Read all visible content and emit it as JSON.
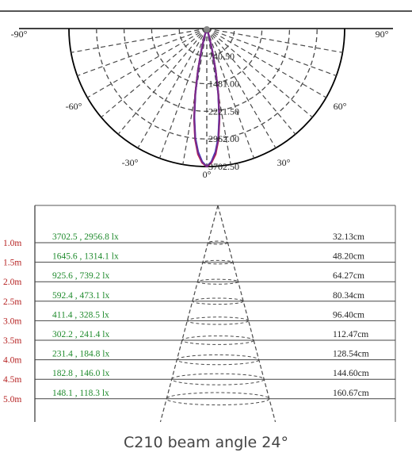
{
  "caption": "C210 beam angle 24°",
  "colors": {
    "dash": "#4a4a4a",
    "curve_c0": "#e8102a",
    "curve_c90": "#1f3fd8",
    "curve_c_mid": "#7a2a8a",
    "illuminance_text": "#1e8a2c",
    "distance_text": "#b52020",
    "diameter_text": "#222222"
  },
  "chart_data": [
    {
      "type": "polar",
      "angle_labels": [
        {
          "value": -90,
          "text": "-90°"
        },
        {
          "value": 90,
          "text": "90°"
        },
        {
          "value": -60,
          "text": "-60°"
        },
        {
          "value": 60,
          "text": "60°"
        },
        {
          "value": -30,
          "text": "-30°"
        },
        {
          "value": 30,
          "text": "30°"
        },
        {
          "value": 0,
          "text": "0°"
        }
      ],
      "radial_labels": [
        "740.50",
        "1481.00",
        "2221.50",
        "2962.00",
        "3702.50"
      ],
      "radial_max": 3702.5,
      "series": [
        {
          "points": [
            [
              0,
              3702.5
            ],
            [
              2,
              3600
            ],
            [
              4,
              3380
            ],
            [
              6,
              3000
            ],
            [
              8,
              2450
            ],
            [
              10,
              1800
            ],
            [
              12,
              1150
            ],
            [
              14,
              620
            ],
            [
              16,
              260
            ],
            [
              18,
              70
            ],
            [
              20,
              10
            ],
            [
              22,
              0
            ]
          ]
        },
        {
          "points": [
            [
              0,
              3702.5
            ],
            [
              2,
              3570
            ],
            [
              4,
              3320
            ],
            [
              6,
              2950
            ],
            [
              8,
              2400
            ],
            [
              10,
              1760
            ],
            [
              12,
              1120
            ],
            [
              14,
              600
            ],
            [
              16,
              250
            ],
            [
              18,
              65
            ],
            [
              20,
              8
            ],
            [
              22,
              0
            ]
          ]
        },
        {
          "points": [
            [
              0,
              3702.5
            ],
            [
              2,
              3590
            ],
            [
              4,
              3350
            ],
            [
              6,
              2980
            ],
            [
              8,
              2430
            ],
            [
              10,
              1780
            ],
            [
              12,
              1140
            ],
            [
              14,
              610
            ],
            [
              16,
              255
            ],
            [
              18,
              68
            ],
            [
              20,
              9
            ],
            [
              22,
              0
            ]
          ]
        }
      ]
    },
    {
      "type": "table",
      "beam_angle_deg": 24,
      "rows": [
        {
          "distance": "1.0m",
          "lux": "3702.5 , 2956.8 lx",
          "diameter": "32.13cm"
        },
        {
          "distance": "1.5m",
          "lux": "1645.6 , 1314.1 lx",
          "diameter": "48.20cm"
        },
        {
          "distance": "2.0m",
          "lux": "925.6 , 739.2 lx",
          "diameter": "64.27cm"
        },
        {
          "distance": "2.5m",
          "lux": "592.4 , 473.1 lx",
          "diameter": "80.34cm"
        },
        {
          "distance": "3.0m",
          "lux": "411.4 , 328.5 lx",
          "diameter": "96.40cm"
        },
        {
          "distance": "3.5m",
          "lux": "302.2 , 241.4 lx",
          "diameter": "112.47cm"
        },
        {
          "distance": "4.0m",
          "lux": "231.4 , 184.8 lx",
          "diameter": "128.54cm"
        },
        {
          "distance": "4.5m",
          "lux": "182.8 , 146.0 lx",
          "diameter": "144.60cm"
        },
        {
          "distance": "5.0m",
          "lux": "148.1 , 118.3 lx",
          "diameter": "160.67cm"
        }
      ]
    }
  ]
}
